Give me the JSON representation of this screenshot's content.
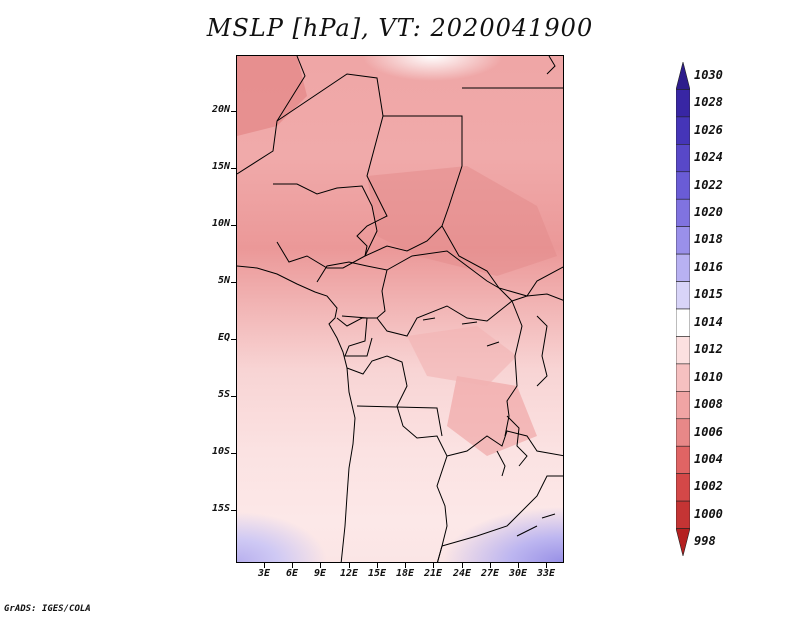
{
  "title": "MSLP [hPa], VT: 2020041900",
  "footer": "GrADS: IGES/COLA",
  "map": {
    "lat_labels": [
      "20N",
      "15N",
      "10N",
      "5N",
      "EQ",
      "5S",
      "10S",
      "15S"
    ],
    "lon_labels": [
      "3E",
      "6E",
      "9E",
      "12E",
      "15E",
      "18E",
      "21E",
      "24E",
      "27E",
      "30E",
      "33E"
    ]
  },
  "colorbar": {
    "levels": [
      {
        "label": "1030",
        "color": "#2e1d8c"
      },
      {
        "label": "1028",
        "color": "#3826a4"
      },
      {
        "label": "1026",
        "color": "#4535b8"
      },
      {
        "label": "1024",
        "color": "#5848c8"
      },
      {
        "label": "1022",
        "color": "#6a5cd6"
      },
      {
        "label": "1020",
        "color": "#8073e0"
      },
      {
        "label": "1018",
        "color": "#9a90ea"
      },
      {
        "label": "1016",
        "color": "#b8b1f2"
      },
      {
        "label": "1015",
        "color": "#d8d4f8"
      },
      {
        "label": "1014",
        "color": "#ffffff"
      },
      {
        "label": "1012",
        "color": "#fce0e0"
      },
      {
        "label": "1010",
        "color": "#f6c0c0"
      },
      {
        "label": "1008",
        "color": "#f0a4a4"
      },
      {
        "label": "1006",
        "color": "#e88888"
      },
      {
        "label": "1004",
        "color": "#e06464"
      },
      {
        "label": "1002",
        "color": "#d44848"
      },
      {
        "label": "1000",
        "color": "#c43434"
      },
      {
        "label": "998",
        "color": "#b42020"
      }
    ]
  }
}
